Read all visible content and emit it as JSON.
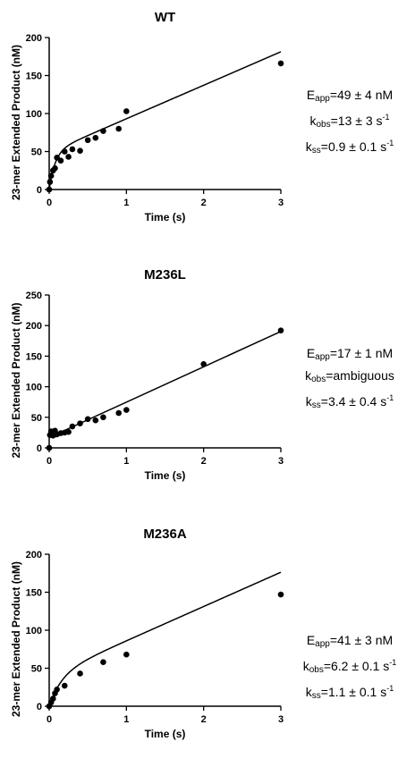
{
  "chart_data": [
    {
      "type": "scatter",
      "title": "WT",
      "xlabel": "Time (s)",
      "ylabel": "23-mer Extended Product (nM)",
      "xlim": [
        0,
        3
      ],
      "ylim": [
        0,
        200
      ],
      "xticks": [
        "0",
        "1",
        "2",
        "3"
      ],
      "yticks": [
        "0",
        "50",
        "100",
        "150",
        "200"
      ],
      "points": {
        "x": [
          0,
          0.01,
          0.025,
          0.05,
          0.075,
          0.1,
          0.15,
          0.2,
          0.25,
          0.3,
          0.4,
          0.5,
          0.6,
          0.7,
          0.9,
          1.0,
          3.0
        ],
        "y": [
          0,
          10,
          18,
          25,
          28,
          42,
          38,
          50,
          43,
          53,
          51,
          65,
          68,
          77,
          80,
          103,
          166
        ]
      },
      "fit": {
        "amplitude": 49,
        "k_obs": 13,
        "k_ss": 0.9,
        "E_app": 49
      },
      "annotation": {
        "eapp": {
          "sym": "E",
          "sub": "app",
          "text": "=49 ± 4 nM"
        },
        "kobs": {
          "sym": "k",
          "sub": "obs",
          "text": "=13 ± 3 s",
          "sup": "-1"
        },
        "kss": {
          "sym": "k",
          "sub": "ss",
          "text": "=0.9 ± 0.1 s",
          "sup": "-1"
        }
      }
    },
    {
      "type": "scatter",
      "title": "M236L",
      "xlabel": "Time (s)",
      "ylabel": "23-mer Extended Product (nM)",
      "xlim": [
        0,
        3
      ],
      "ylim": [
        0,
        250
      ],
      "xticks": [
        "0",
        "1",
        "2",
        "3"
      ],
      "yticks": [
        "0",
        "50",
        "100",
        "150",
        "200",
        "250"
      ],
      "points": {
        "x": [
          0,
          0.01,
          0.025,
          0.05,
          0.075,
          0.1,
          0.15,
          0.2,
          0.25,
          0.3,
          0.4,
          0.5,
          0.6,
          0.7,
          0.9,
          1.0,
          2.0,
          3.0
        ],
        "y": [
          0,
          21,
          27,
          20,
          28,
          22,
          24,
          25,
          26,
          35,
          40,
          47,
          45,
          50,
          57,
          62,
          137,
          192
        ]
      },
      "fit": {
        "intercept": 17,
        "k_ss": 3.4,
        "E_app": 17
      },
      "annotation": {
        "eapp": {
          "sym": "E",
          "sub": "app",
          "text": "=17 ± 1 nM"
        },
        "kobs": {
          "sym": "k",
          "sub": "obs",
          "text": "=ambiguous",
          "sup": ""
        },
        "kss": {
          "sym": "k",
          "sub": "ss",
          "text": "=3.4 ± 0.4 s",
          "sup": "-1"
        }
      }
    },
    {
      "type": "scatter",
      "title": "M236A",
      "xlabel": "Time (s)",
      "ylabel": "23-mer Extended Product (nM)",
      "xlim": [
        0,
        3
      ],
      "ylim": [
        0,
        200
      ],
      "xticks": [
        "0",
        "1",
        "2",
        "3"
      ],
      "yticks": [
        "0",
        "50",
        "100",
        "150",
        "200"
      ],
      "points": {
        "x": [
          0,
          0.025,
          0.05,
          0.075,
          0.1,
          0.2,
          0.4,
          0.7,
          1.0,
          3.0
        ],
        "y": [
          0,
          5,
          10,
          17,
          22,
          27,
          43,
          58,
          68,
          147
        ]
      },
      "fit": {
        "amplitude": 41,
        "k_obs": 6.2,
        "k_ss": 1.1,
        "E_app": 41
      },
      "annotation": {
        "eapp": {
          "sym": "E",
          "sub": "app",
          "text": "=41 ± 3 nM"
        },
        "kobs": {
          "sym": "k",
          "sub": "obs",
          "text": "=6.2 ± 0.1 s",
          "sup": "-1"
        },
        "kss": {
          "sym": "k",
          "sub": "ss",
          "text": "=1.1 ± 0.1 s",
          "sup": "-1"
        }
      }
    }
  ]
}
